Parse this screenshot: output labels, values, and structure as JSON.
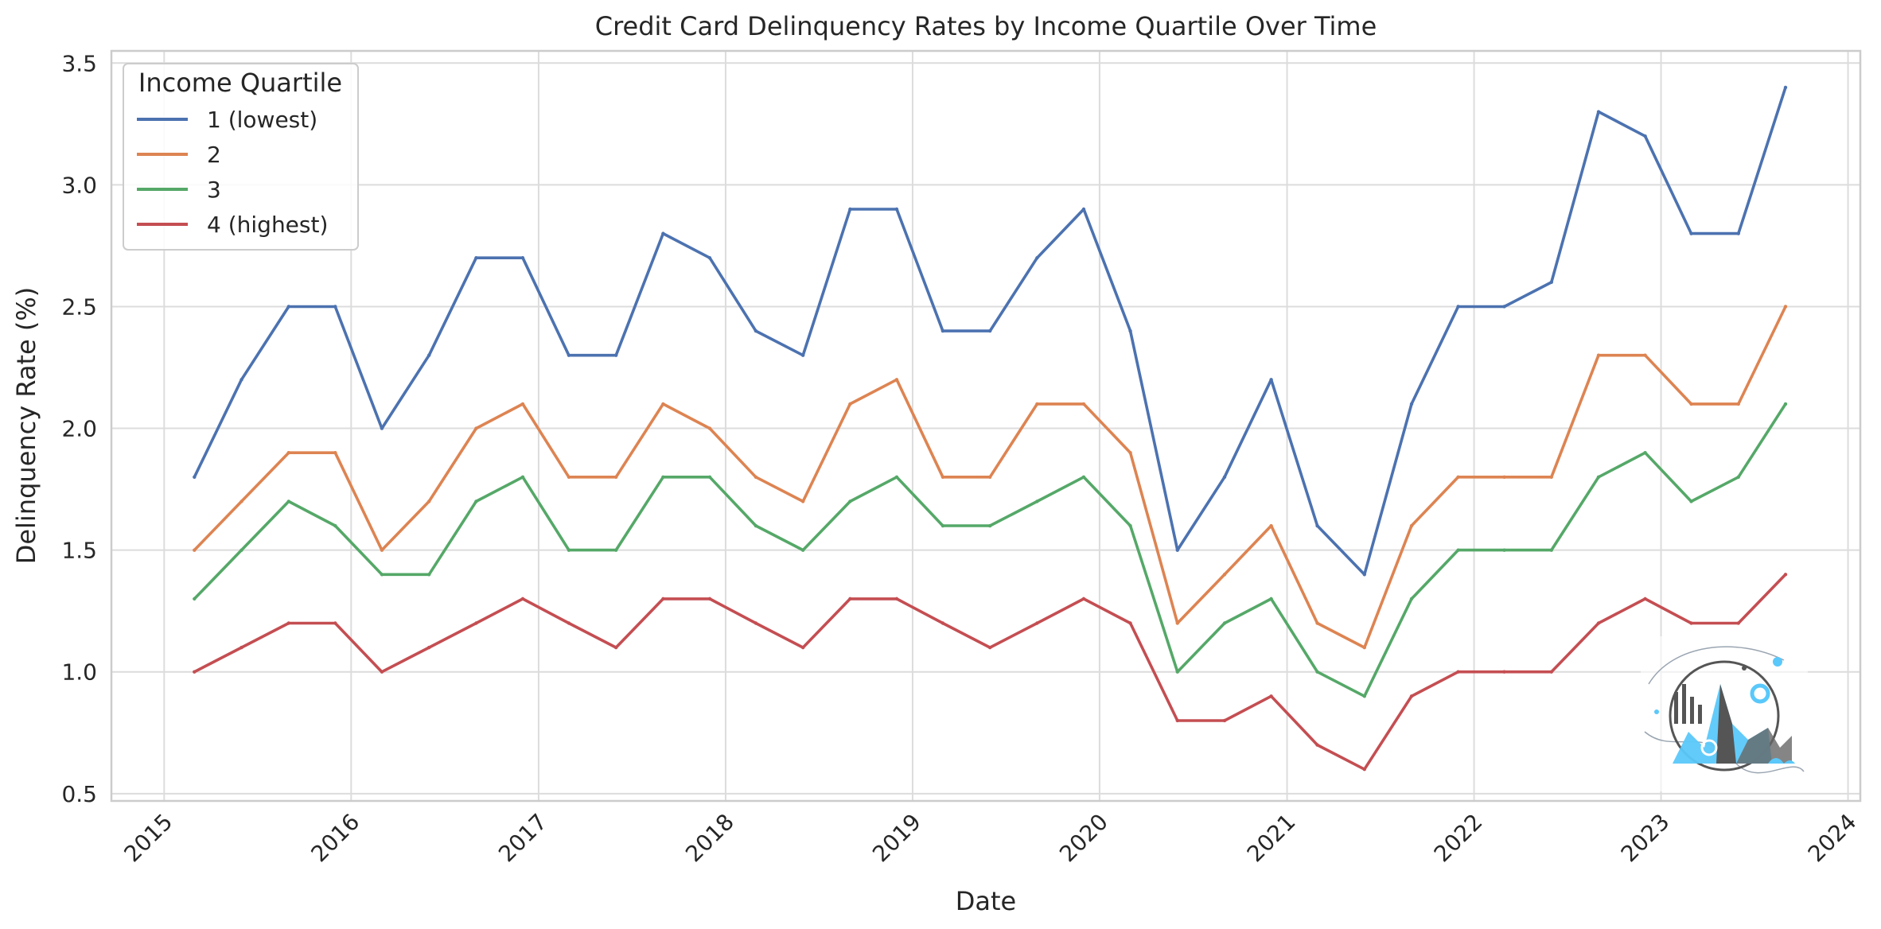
{
  "chart_data": {
    "type": "line",
    "title": "Credit Card Delinquency Rates by Income Quartile Over Time",
    "xlabel": "Date",
    "ylabel": "Delinquency Rate (%)",
    "xlim": [
      "2014-09-20",
      "2024-01-25"
    ],
    "ylim": [
      0.47,
      3.55
    ],
    "x_ticks": [
      "2015-01-01",
      "2016-01-01",
      "2017-01-01",
      "2018-01-01",
      "2019-01-01",
      "2020-01-01",
      "2021-01-01",
      "2022-01-01",
      "2023-01-01",
      "2024-01-01"
    ],
    "x_tick_labels": [
      "2015",
      "2016",
      "2017",
      "2018",
      "2019",
      "2020",
      "2021",
      "2022",
      "2023",
      "2024"
    ],
    "y_ticks": [
      0.5,
      1.0,
      1.5,
      2.0,
      2.5,
      3.0,
      3.5
    ],
    "y_tick_labels": [
      "0.5",
      "1.0",
      "1.5",
      "2.0",
      "2.5",
      "3.0",
      "3.5"
    ],
    "grid": true,
    "legend": {
      "title": "Income Quartile",
      "placement": "top-left"
    },
    "x": [
      "2015-03-01",
      "2015-06-01",
      "2015-09-01",
      "2015-12-01",
      "2016-03-01",
      "2016-06-01",
      "2016-09-01",
      "2016-12-01",
      "2017-03-01",
      "2017-06-01",
      "2017-09-01",
      "2017-12-01",
      "2018-03-01",
      "2018-06-01",
      "2018-09-01",
      "2018-12-01",
      "2019-03-01",
      "2019-06-01",
      "2019-09-01",
      "2019-12-01",
      "2020-03-01",
      "2020-06-01",
      "2020-09-01",
      "2020-12-01",
      "2021-03-01",
      "2021-06-01",
      "2021-09-01",
      "2021-12-01",
      "2022-03-01",
      "2022-06-01",
      "2022-09-01",
      "2022-12-01",
      "2023-03-01",
      "2023-06-01",
      "2023-09-01"
    ],
    "series": [
      {
        "name": "1 (lowest)",
        "color": "#4c72b0",
        "values": [
          1.8,
          2.2,
          2.5,
          2.5,
          2.0,
          2.3,
          2.7,
          2.7,
          2.3,
          2.3,
          2.8,
          2.7,
          2.4,
          2.3,
          2.9,
          2.9,
          2.4,
          2.4,
          2.7,
          2.9,
          2.4,
          1.5,
          1.8,
          2.2,
          1.6,
          1.4,
          2.1,
          2.5,
          2.5,
          2.6,
          3.3,
          3.2,
          2.8,
          2.8,
          3.4
        ]
      },
      {
        "name": "2",
        "color": "#dd8452",
        "values": [
          1.5,
          1.7,
          1.9,
          1.9,
          1.5,
          1.7,
          2.0,
          2.1,
          1.8,
          1.8,
          2.1,
          2.0,
          1.8,
          1.7,
          2.1,
          2.2,
          1.8,
          1.8,
          2.1,
          2.1,
          1.9,
          1.2,
          1.4,
          1.6,
          1.2,
          1.1,
          1.6,
          1.8,
          1.8,
          1.8,
          2.3,
          2.3,
          2.1,
          2.1,
          2.5
        ]
      },
      {
        "name": "3",
        "color": "#55a868",
        "values": [
          1.3,
          1.5,
          1.7,
          1.6,
          1.4,
          1.4,
          1.7,
          1.8,
          1.5,
          1.5,
          1.8,
          1.8,
          1.6,
          1.5,
          1.7,
          1.8,
          1.6,
          1.6,
          1.7,
          1.8,
          1.6,
          1.0,
          1.2,
          1.3,
          1.0,
          0.9,
          1.3,
          1.5,
          1.5,
          1.5,
          1.8,
          1.9,
          1.7,
          1.8,
          2.1
        ]
      },
      {
        "name": "4 (highest)",
        "color": "#c44e52",
        "values": [
          1.0,
          1.1,
          1.2,
          1.2,
          1.0,
          1.1,
          1.2,
          1.3,
          1.2,
          1.1,
          1.3,
          1.3,
          1.2,
          1.1,
          1.3,
          1.3,
          1.2,
          1.1,
          1.2,
          1.3,
          1.2,
          0.8,
          0.8,
          0.9,
          0.7,
          0.6,
          0.9,
          1.0,
          1.0,
          1.0,
          1.2,
          1.3,
          1.2,
          1.2,
          1.4
        ]
      }
    ]
  }
}
